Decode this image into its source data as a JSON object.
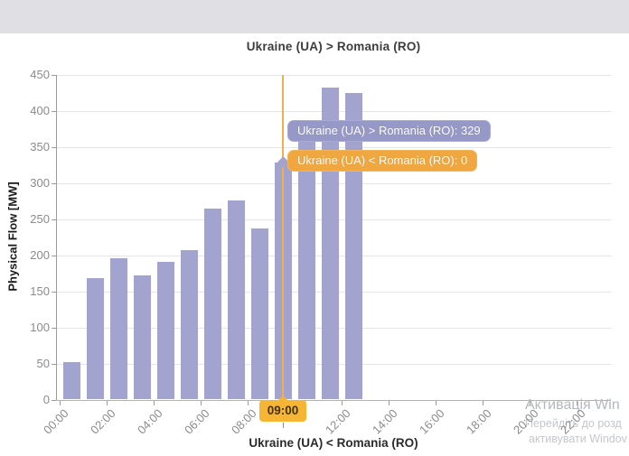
{
  "window": {
    "topbar_color": "#e0e0e4"
  },
  "chart": {
    "title": "Ukraine (UA) > Romania (RO)",
    "tooltip": {
      "series1": "Ukraine (UA) > Romania (RO): 329",
      "series2": "Ukraine (UA) < Romania (RO): 0"
    },
    "highlighted_x_label": "09:00"
  },
  "chart_data": {
    "type": "bar",
    "title": "Ukraine (UA) > Romania (RO)",
    "xlabel": "Ukraine (UA) < Romania (RO)",
    "ylabel": "Physical Flow [MW]",
    "ylim": [
      0,
      450
    ],
    "y_ticks": [
      450,
      400,
      350,
      300,
      250,
      200,
      150,
      100,
      50,
      0
    ],
    "x_tick_labels": [
      "00:00",
      "02:00",
      "04:00",
      "06:00",
      "08:00",
      "12:00",
      "14:00",
      "16:00",
      "18:00",
      "20:00",
      "22:00"
    ],
    "x_tick_hours": [
      0,
      2,
      4,
      6,
      8,
      12,
      14,
      16,
      18,
      20,
      22
    ],
    "categories": [
      "00:00",
      "01:00",
      "02:00",
      "03:00",
      "04:00",
      "05:00",
      "06:00",
      "07:00",
      "08:00",
      "09:00",
      "10:00",
      "11:00",
      "12:00"
    ],
    "values": [
      53,
      169,
      196,
      172,
      191,
      207,
      265,
      276,
      238,
      329,
      370,
      433,
      425
    ],
    "highlighted_category": "09:00",
    "highlighted_index": 9,
    "highlighted_value": 329,
    "grid": true,
    "legend_position": "none",
    "colors": {
      "bar": "#a3a3cf",
      "tooltip_primary": "#9698c8",
      "tooltip_secondary": "#f0a740",
      "highlight_label": "#f7b535",
      "crosshair": "#eeb04a"
    }
  },
  "watermark": {
    "line1": "Активація Win",
    "line2": "Перейдіть до розд",
    "line3": "активувати Windov"
  }
}
